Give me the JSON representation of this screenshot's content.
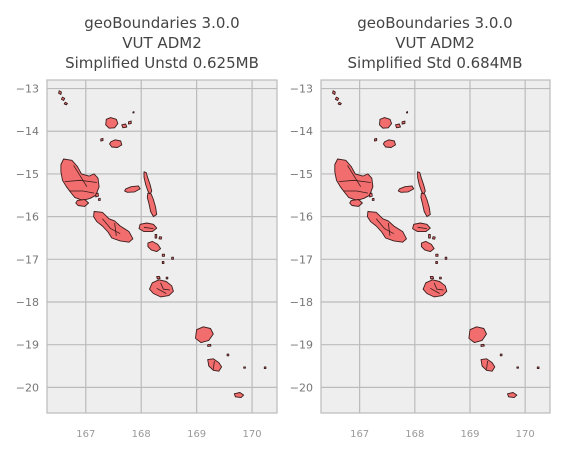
{
  "chart_data": [
    {
      "type": "map",
      "title_lines": [
        "geoBoundaries 3.0.0",
        "VUT ADM2",
        "Simplified Unstd 0.625MB"
      ],
      "xticks": [
        "167",
        "168",
        "169",
        "170"
      ],
      "yticks": [
        "−13",
        "−14",
        "−15",
        "−16",
        "−17",
        "−18",
        "−19",
        "−20"
      ],
      "xlim": [
        166.3,
        170.45
      ],
      "ylim": [
        -20.6,
        -12.8
      ],
      "grid": true
    },
    {
      "type": "map",
      "title_lines": [
        "geoBoundaries 3.0.0",
        "VUT ADM2",
        "Simplified Std 0.684MB"
      ],
      "xticks": [
        "167",
        "168",
        "169",
        "170"
      ],
      "yticks": [
        "−13",
        "−14",
        "−15",
        "−16",
        "−17",
        "−18",
        "−19",
        "−20"
      ],
      "xlim": [
        166.3,
        170.45
      ],
      "ylim": [
        -20.6,
        -12.8
      ],
      "grid": true
    }
  ],
  "colors": {
    "fill": "#f26d6d",
    "edge": "#3a1c1c",
    "plot_background": "#eeeeee",
    "grid": "#bbbbbb"
  }
}
